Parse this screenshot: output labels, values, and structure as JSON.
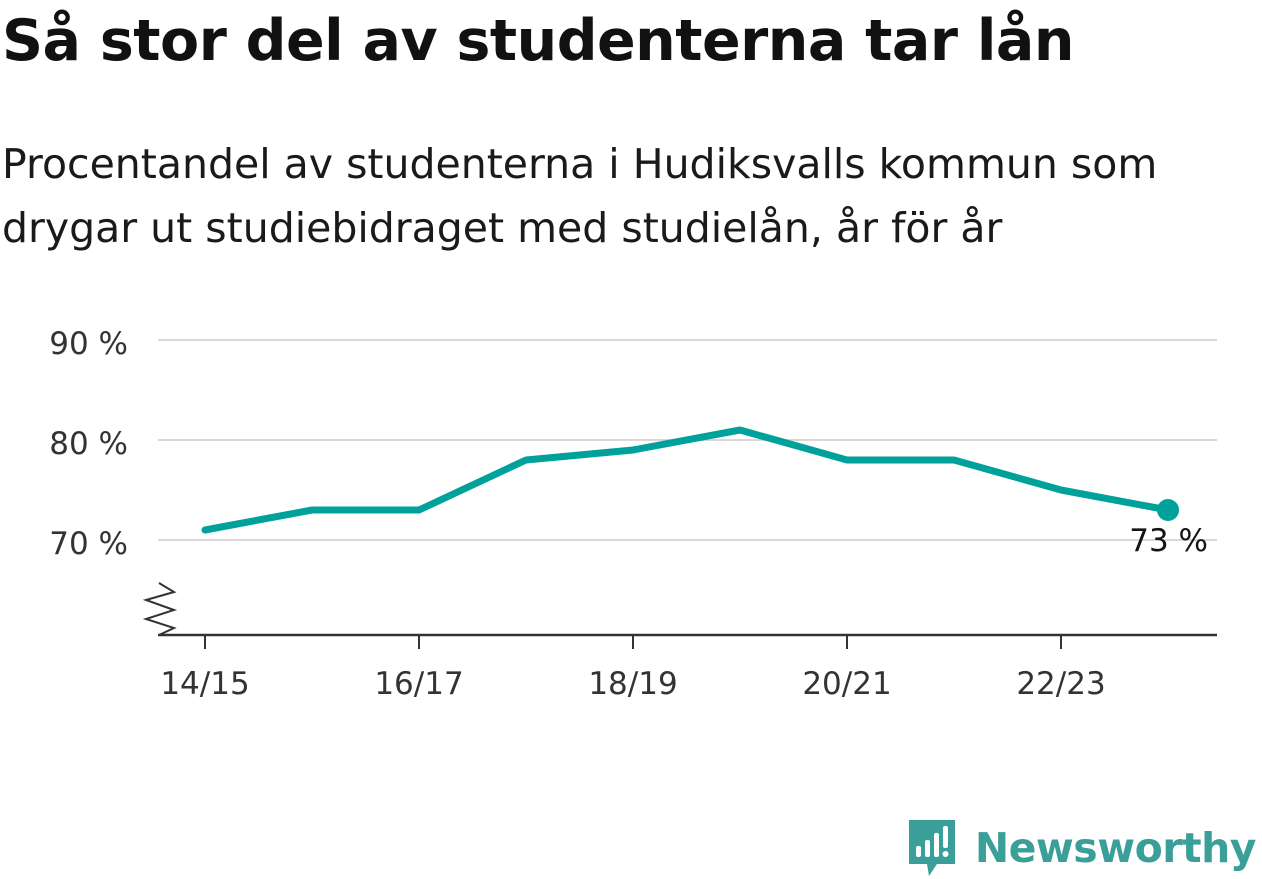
{
  "title": "Så stor del av studenterna tar lån",
  "subtitle": "Procentandel av studenterna i Hudiksvalls kommun som drygar ut studiebidraget med studielån, år för år",
  "chart_data": {
    "type": "line",
    "x": [
      "14/15",
      "15/16",
      "16/17",
      "17/18",
      "18/19",
      "19/20",
      "20/21",
      "21/22",
      "22/23",
      "23/24"
    ],
    "values": [
      71,
      73,
      73,
      78,
      79,
      81,
      78,
      78,
      75,
      73
    ],
    "x_tick_labels": [
      "14/15",
      "16/17",
      "18/19",
      "20/21",
      "22/23"
    ],
    "y_ticks": [
      70,
      80,
      90
    ],
    "y_tick_labels": [
      "70 %",
      "80 %",
      "90 %"
    ],
    "ylim": [
      60.5,
      90
    ],
    "axis_break": true,
    "grid": true,
    "end_label": "73 %",
    "color": "#00a19a",
    "xlabel": "",
    "ylabel": ""
  },
  "brand": {
    "name": "Newsworthy",
    "logo_icon": "newsworthy-logo-icon",
    "color": "#3a9e99"
  }
}
